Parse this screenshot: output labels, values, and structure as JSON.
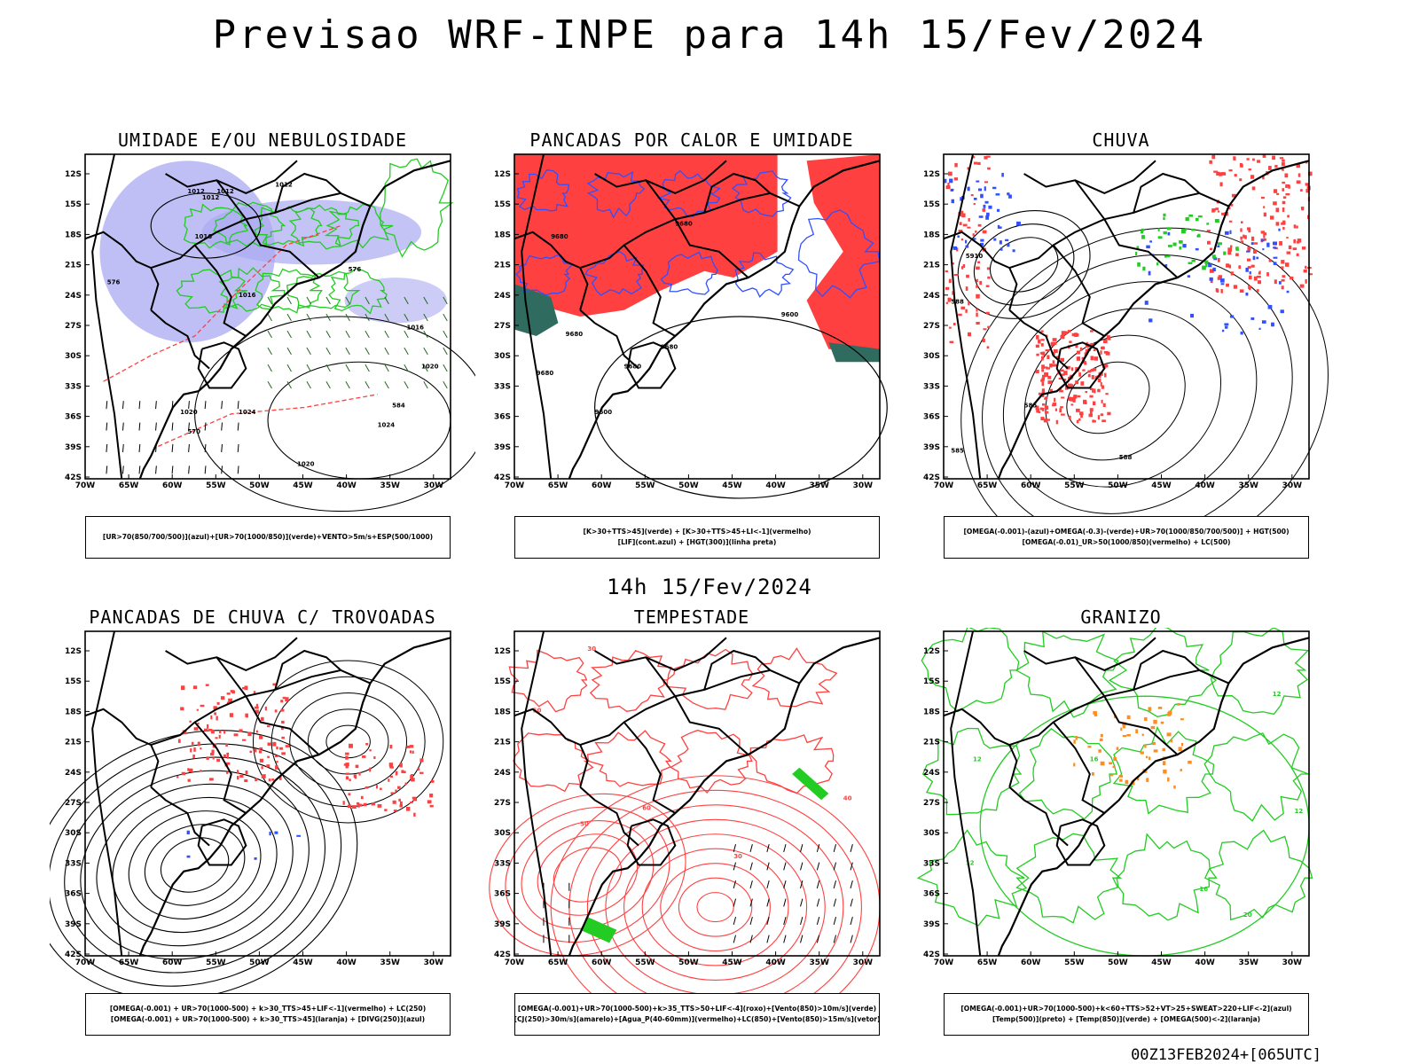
{
  "header": {
    "title": "Previsao WRF-INPE  para 14h 15/Fev/2024",
    "subtitle": "14h 15/Fev/2024"
  },
  "footer": {
    "run_stamp": "00Z13FEB2024+[065UTC]"
  },
  "axes": {
    "lat_labels": [
      "12S",
      "15S",
      "18S",
      "21S",
      "24S",
      "27S",
      "30S",
      "33S",
      "36S",
      "39S",
      "42S"
    ],
    "lon_labels": [
      "70W",
      "65W",
      "60W",
      "55W",
      "50W",
      "45W",
      "40W",
      "35W",
      "30W"
    ]
  },
  "colors": {
    "purple_shade": "#aaaaf2",
    "green_contour": "#22cc22",
    "red": "#ff4040",
    "blue": "#3050ff",
    "orange": "#ff8c20",
    "dark_teal": "#2f6b5f"
  },
  "panels": [
    {
      "title": "UMIDADE E/OU NEBULOSIDADE",
      "legend": [
        "[UR>70(850/700/500)](azul)+[UR>70(1000/850)](verde)+VENTO>5m/s+ESP(500/1000)"
      ],
      "contour_labels": [
        "1012",
        "1012",
        "1012",
        "1012",
        "1016",
        "1016",
        "1016",
        "1020",
        "1020",
        "1024",
        "1024",
        "1020",
        "576",
        "570",
        "576",
        "584"
      ]
    },
    {
      "title": "PANCADAS POR CALOR E UMIDADE",
      "legend": [
        "[K>30+TTS>45](verde) + [K>30+TTS>45+LI<-1](vermelho)",
        "[LIF](cont.azul) + [HGT(300)](linha preta)"
      ],
      "contour_labels": [
        "9680",
        "9680",
        "9680",
        "9680",
        "9680",
        "9680",
        "9600",
        "9600"
      ]
    },
    {
      "title": "CHUVA",
      "legend": [
        "[OMEGA(-0.001)-(azul)+OMEGA(-0.3)-(verde)+UR>70(1000/850/700/500)] + HGT(500)",
        "[OMEGA(-0.01)_UR>50(1000/850)(vermelho) + LC(500)"
      ],
      "contour_labels": [
        "5910",
        "588",
        "585",
        "585",
        "588"
      ]
    },
    {
      "title": "PANCADAS DE CHUVA C/ TROVOADAS",
      "legend": [
        "[OMEGA(-0.001) + UR>70(1000-500) + k>30_TTS>45+LIF<-1](vermelho) + LC(250)",
        "[OMEGA(-0.001) + UR>70(1000-500) + k>30_TTS>45](laranja) + [DIVG(250)](azul)"
      ],
      "contour_labels": []
    },
    {
      "title": "TEMPESTADE",
      "legend": [
        "[OMEGA(-0.001)+UR>70(1000-500)+k>35_TTS>50+LIF<-4](roxo)+[Vento(850)>10m/s](verde)",
        "[CJ(250)>30m/s](amarelo)+[Agua_P(40-60mm)](vermelho)+LC(850)+[Vento(850)>15m/s](vetor)"
      ],
      "contour_labels": [
        "30",
        "50",
        "60",
        "50",
        "30",
        "40"
      ]
    },
    {
      "title": "GRANIZO",
      "legend": [
        "[OMEGA(-0.001)+UR>70(1000-500)+k<60+TTS>52+VT>25+SWEAT>220+LIF<-2](azul)",
        "[Temp(500)](preto) + [Temp(850)](verde) + [OMEGA(500)<-2](laranja)"
      ],
      "contour_labels": [
        "12",
        "12",
        "12",
        "12",
        "16",
        "16",
        "20"
      ]
    }
  ]
}
